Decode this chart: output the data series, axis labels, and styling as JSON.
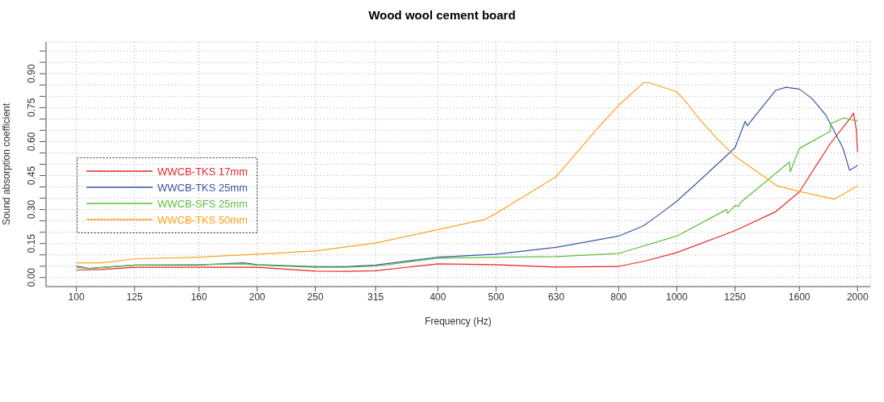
{
  "chart_data": {
    "type": "line",
    "title": "Wood wool cement board",
    "xlabel": "Frequency (Hz)",
    "ylabel": "Sound absorption coefficient",
    "log": "x",
    "xlim": [
      89,
      2100
    ],
    "xticks": [
      100,
      125,
      160,
      200,
      250,
      315,
      400,
      500,
      630,
      800,
      1000,
      1250,
      1600,
      2000
    ],
    "ylim": [
      -0.04,
      1.04
    ],
    "yticks": [
      {
        "value": 0,
        "label": "0.00"
      },
      {
        "value": 0.05,
        "label": null
      },
      {
        "value": 0.1,
        "label": null
      },
      {
        "value": 0.15,
        "label": "0.15"
      },
      {
        "value": 0.2,
        "label": null
      },
      {
        "value": 0.25,
        "label": null
      },
      {
        "value": 0.3,
        "label": "0.30"
      },
      {
        "value": 0.35,
        "label": null
      },
      {
        "value": 0.4,
        "label": null
      },
      {
        "value": 0.45,
        "label": "0.45"
      },
      {
        "value": 0.5,
        "label": null
      },
      {
        "value": 0.55,
        "label": null
      },
      {
        "value": 0.6,
        "label": "0.60"
      },
      {
        "value": 0.65,
        "label": null
      },
      {
        "value": 0.7,
        "label": null
      },
      {
        "value": 0.75,
        "label": "0.75"
      },
      {
        "value": 0.8,
        "label": null
      },
      {
        "value": 0.85,
        "label": null
      },
      {
        "value": 0.9,
        "label": "0.90"
      },
      {
        "value": 0.95,
        "label": null
      },
      {
        "value": 1,
        "label": null
      }
    ],
    "grid": true,
    "legend": "left",
    "marker": "none",
    "line_style": "solid",
    "series": [
      {
        "name": "WWCB-TKS 17mm",
        "color": "#e8262a",
        "x": [
          100,
          110,
          125,
          160,
          200,
          250,
          280,
          315,
          400,
          500,
          630,
          800,
          890,
          1000,
          1250,
          1460,
          1600,
          1800,
          1940,
          1970,
          1990,
          2000
        ],
        "values": [
          0.033,
          0.035,
          0.045,
          0.045,
          0.045,
          0.028,
          0.027,
          0.03,
          0.06,
          0.057,
          0.046,
          0.049,
          0.074,
          0.11,
          0.207,
          0.29,
          0.378,
          0.59,
          0.7,
          0.726,
          0.655,
          0.555
        ]
      },
      {
        "name": "WWCB-TKS 25mm",
        "color": "#3a55a4",
        "x": [
          100,
          105,
          125,
          160,
          190,
          200,
          250,
          280,
          315,
          400,
          500,
          630,
          800,
          880,
          940,
          1000,
          1090,
          1250,
          1300,
          1310,
          1460,
          1520,
          1600,
          1680,
          1770,
          1890,
          1940,
          2000
        ],
        "values": [
          0.05,
          0.04,
          0.055,
          0.055,
          0.065,
          0.057,
          0.048,
          0.048,
          0.055,
          0.09,
          0.103,
          0.133,
          0.183,
          0.228,
          0.283,
          0.337,
          0.427,
          0.573,
          0.69,
          0.67,
          0.826,
          0.84,
          0.832,
          0.79,
          0.718,
          0.573,
          0.473,
          0.495
        ]
      },
      {
        "name": "WWCB-SFS 25mm",
        "color": "#5bbf3c",
        "x": [
          100,
          105,
          125,
          160,
          190,
          200,
          250,
          280,
          315,
          400,
          500,
          630,
          800,
          1000,
          1210,
          1215,
          1250,
          1270,
          1275,
          1540,
          1545,
          1600,
          1800,
          1805,
          1900,
          2000
        ],
        "values": [
          0.045,
          0.04,
          0.055,
          0.057,
          0.06,
          0.055,
          0.045,
          0.045,
          0.05,
          0.085,
          0.09,
          0.092,
          0.106,
          0.183,
          0.3,
          0.283,
          0.318,
          0.315,
          0.33,
          0.51,
          0.466,
          0.57,
          0.645,
          0.68,
          0.705,
          0.69
        ]
      },
      {
        "name": "WWCB-TKS 50mm",
        "color": "#ffa31a",
        "x": [
          100,
          110,
          125,
          160,
          200,
          250,
          315,
          400,
          479,
          500,
          630,
          687,
          740,
          800,
          880,
          900,
          1000,
          1040,
          1090,
          1170,
          1250,
          1350,
          1470,
          1600,
          1830,
          2000
        ],
        "values": [
          0.065,
          0.065,
          0.082,
          0.09,
          0.103,
          0.117,
          0.152,
          0.212,
          0.256,
          0.283,
          0.446,
          0.563,
          0.663,
          0.76,
          0.86,
          0.86,
          0.82,
          0.77,
          0.7,
          0.61,
          0.536,
          0.473,
          0.405,
          0.38,
          0.346,
          0.405
        ]
      }
    ]
  }
}
